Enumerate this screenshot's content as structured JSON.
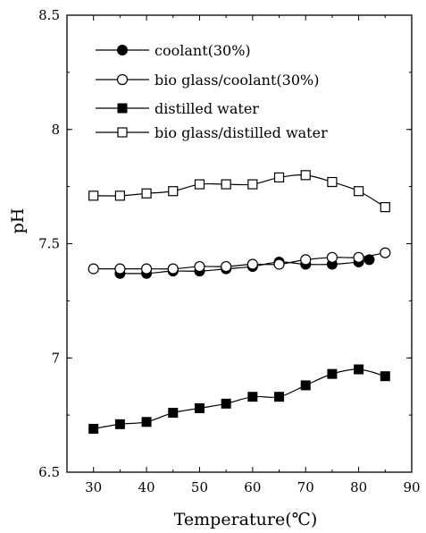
{
  "chart_data": {
    "type": "line",
    "title": "",
    "xlabel": "Temperature(℃)",
    "ylabel": "pH",
    "xlim": [
      25,
      90
    ],
    "ylim": [
      6.5,
      8.5
    ],
    "xticks": [
      30,
      40,
      50,
      60,
      70,
      80,
      90
    ],
    "yticks": [
      6.5,
      7,
      7.5,
      8,
      8.5
    ],
    "ytick_labels": [
      "6.5",
      "7",
      "7.5",
      "8",
      "8.5"
    ],
    "grid": false,
    "legend_position": "top-left",
    "series": [
      {
        "name": "coolant(30%)",
        "marker": "filled-circle",
        "x": [
          35,
          40,
          45,
          50,
          55,
          60,
          65,
          70,
          75,
          80,
          82
        ],
        "y": [
          7.37,
          7.37,
          7.38,
          7.38,
          7.39,
          7.4,
          7.42,
          7.41,
          7.41,
          7.42,
          7.43
        ]
      },
      {
        "name": "bio glass/coolant(30%)",
        "marker": "open-circle",
        "x": [
          30,
          35,
          40,
          45,
          50,
          55,
          60,
          65,
          70,
          75,
          80,
          85
        ],
        "y": [
          7.39,
          7.39,
          7.39,
          7.39,
          7.4,
          7.4,
          7.41,
          7.41,
          7.43,
          7.44,
          7.44,
          7.46
        ]
      },
      {
        "name": "distilled water",
        "marker": "filled-square",
        "x": [
          30,
          35,
          40,
          45,
          50,
          55,
          60,
          65,
          70,
          75,
          80,
          85
        ],
        "y": [
          6.69,
          6.71,
          6.72,
          6.76,
          6.78,
          6.8,
          6.83,
          6.83,
          6.88,
          6.93,
          6.95,
          6.92
        ]
      },
      {
        "name": "bio glass/distilled water",
        "marker": "open-square",
        "x": [
          30,
          35,
          40,
          45,
          50,
          55,
          60,
          65,
          70,
          75,
          80,
          85
        ],
        "y": [
          7.71,
          7.71,
          7.72,
          7.73,
          7.76,
          7.76,
          7.76,
          7.79,
          7.8,
          7.77,
          7.73,
          7.66
        ]
      }
    ]
  }
}
